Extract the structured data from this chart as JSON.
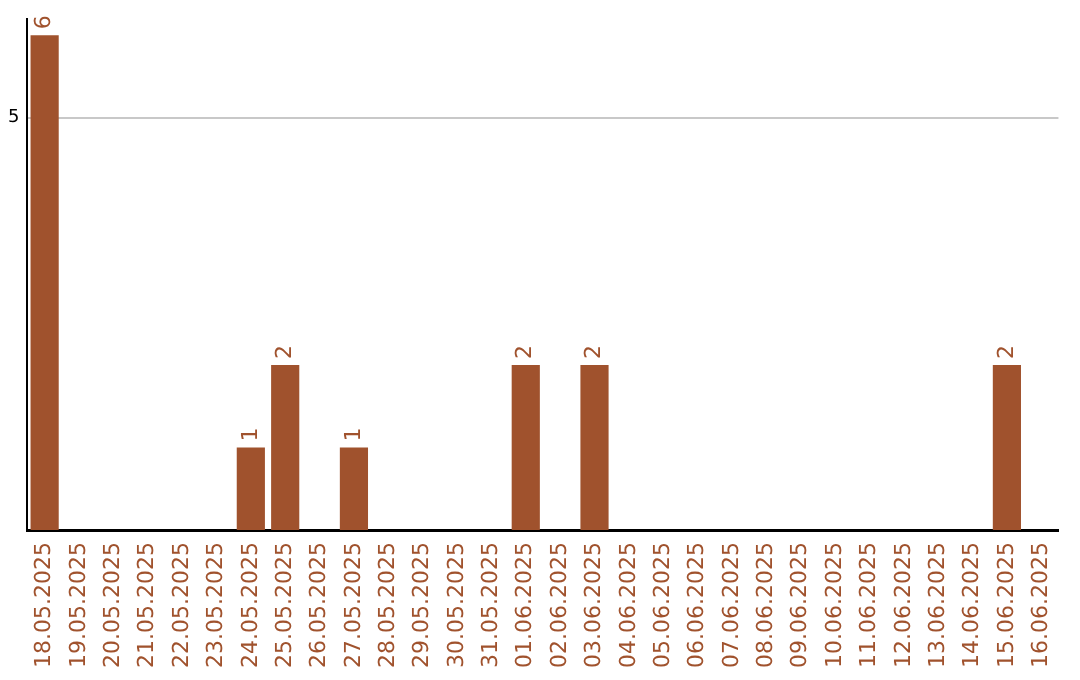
{
  "chart_data": {
    "type": "bar",
    "categories": [
      "18.05.2025",
      "19.05.2025",
      "20.05.2025",
      "21.05.2025",
      "22.05.2025",
      "23.05.2025",
      "24.05.2025",
      "25.05.2025",
      "26.05.2025",
      "27.05.2025",
      "28.05.2025",
      "29.05.2025",
      "30.05.2025",
      "31.05.2025",
      "01.06.2025",
      "02.06.2025",
      "03.06.2025",
      "04.06.2025",
      "05.06.2025",
      "06.06.2025",
      "07.06.2025",
      "08.06.2025",
      "09.06.2025",
      "10.06.2025",
      "11.06.2025",
      "12.06.2025",
      "13.06.2025",
      "14.06.2025",
      "15.06.2025",
      "16.06.2025"
    ],
    "values": [
      6,
      0,
      0,
      0,
      0,
      0,
      1,
      2,
      0,
      1,
      0,
      0,
      0,
      0,
      2,
      0,
      2,
      0,
      0,
      0,
      0,
      0,
      0,
      0,
      0,
      0,
      0,
      0,
      2,
      0
    ],
    "value_labels": [
      "6",
      null,
      null,
      null,
      null,
      null,
      "1",
      "2",
      null,
      "1",
      null,
      null,
      null,
      null,
      "2",
      null,
      "2",
      null,
      null,
      null,
      null,
      null,
      null,
      null,
      null,
      null,
      null,
      null,
      "2",
      null
    ],
    "color": "#a0522d",
    "ylim": [
      0,
      6.2
    ],
    "yticks": [
      5
    ],
    "grid": "y",
    "legend": false
  }
}
